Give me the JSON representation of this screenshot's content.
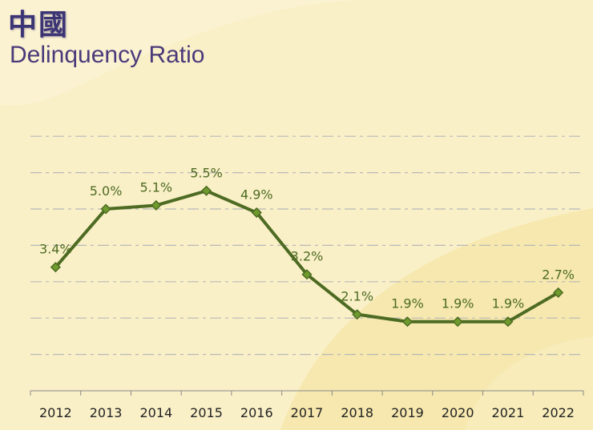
{
  "title_cn": "中國",
  "title_en": "Delinquency Ratio",
  "colors": {
    "line": "#4d6b22",
    "marker": "#6f9b2e",
    "label": "#4d6b22",
    "title": "#3c3575"
  },
  "chart_data": {
    "type": "line",
    "title": "Delinquency Ratio",
    "xlabel": "",
    "ylabel": "",
    "categories": [
      "2012",
      "2013",
      "2014",
      "2015",
      "2016",
      "2017",
      "2018",
      "2019",
      "2020",
      "2021",
      "2022"
    ],
    "series": [
      {
        "name": "Delinquency Ratio",
        "values": [
          3.4,
          5.0,
          5.1,
          5.5,
          4.9,
          3.2,
          2.1,
          1.9,
          1.9,
          1.9,
          2.7
        ],
        "labels": [
          "3.4%",
          "5.0%",
          "5.1%",
          "5.5%",
          "4.9%",
          "3.2%",
          "2.1%",
          "1.9%",
          "1.9%",
          "1.9%",
          "2.7%"
        ]
      }
    ],
    "ylim": [
      0,
      7
    ],
    "grid": true,
    "legend": "none"
  }
}
